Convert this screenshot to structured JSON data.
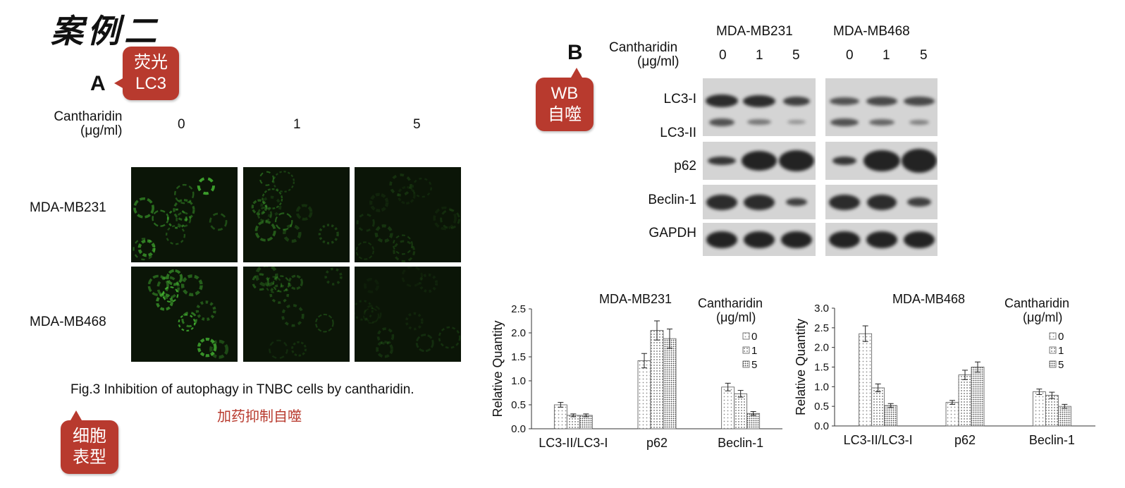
{
  "slide": {
    "title": "案例二",
    "caption": "Fig.3 Inhibition of autophagy in TNBC cells by cantharidin.",
    "caption_note": "加药抑制自噬"
  },
  "callouts": {
    "fluor": [
      "荧光",
      "LC3"
    ],
    "wb": [
      "WB",
      "自噬"
    ],
    "cell": [
      "细胞",
      "表型"
    ]
  },
  "panel_a": {
    "letter": "A",
    "treatment_label": [
      "Cantharidin",
      "(μg/ml)"
    ],
    "doses": [
      "0",
      "1",
      "5"
    ],
    "rows": [
      "MDA-MB231",
      "MDA-MB468"
    ],
    "fluorescence_intensity": [
      [
        1.0,
        0.55,
        0.25
      ],
      [
        0.95,
        0.45,
        0.2
      ]
    ]
  },
  "panel_b": {
    "letter": "B",
    "treatment_label": [
      "Cantharidin",
      "(μg/ml)"
    ],
    "cell_lines": [
      "MDA-MB231",
      "MDA-MB468"
    ],
    "doses": [
      "0",
      "1",
      "5"
    ],
    "proteins": [
      "LC3-I",
      "LC3-II",
      "p62",
      "Beclin-1",
      "GAPDH"
    ]
  },
  "colors": {
    "accent": "#b83a2e",
    "fluorescence": "#4fd23a"
  },
  "chart_data": [
    {
      "type": "bar",
      "title": "MDA-MB231",
      "ylabel": "Relative Quantity",
      "xlabel": "",
      "ylim": [
        0,
        2.5
      ],
      "yticks": [
        "0.0",
        "0.5",
        "1.0",
        "1.5",
        "2.0",
        "2.5"
      ],
      "categories": [
        "LC3-II/LC3-I",
        "p62",
        "Beclin-1"
      ],
      "legend_title": [
        "Cantharidin",
        "(μg/ml)"
      ],
      "legend_position": "top-right",
      "series": [
        {
          "name": "0",
          "values": [
            0.5,
            1.42,
            0.87
          ],
          "errors": [
            0.05,
            0.15,
            0.08
          ]
        },
        {
          "name": "1",
          "values": [
            0.28,
            2.05,
            0.73
          ],
          "errors": [
            0.03,
            0.2,
            0.07
          ]
        },
        {
          "name": "5",
          "values": [
            0.28,
            1.88,
            0.32
          ],
          "errors": [
            0.03,
            0.2,
            0.04
          ]
        }
      ]
    },
    {
      "type": "bar",
      "title": "MDA-MB468",
      "ylabel": "Relative Quantity",
      "xlabel": "",
      "ylim": [
        0,
        3.0
      ],
      "yticks": [
        "0.0",
        "0.5",
        "1.0",
        "1.5",
        "2.0",
        "2.5",
        "3.0"
      ],
      "categories": [
        "LC3-II/LC3-I",
        "p62",
        "Beclin-1"
      ],
      "legend_title": [
        "Cantharidin",
        "(μg/ml)"
      ],
      "legend_position": "top-right",
      "series": [
        {
          "name": "0",
          "values": [
            2.35,
            0.6,
            0.87
          ],
          "errors": [
            0.2,
            0.05,
            0.07
          ]
        },
        {
          "name": "1",
          "values": [
            0.97,
            1.3,
            0.78
          ],
          "errors": [
            0.1,
            0.12,
            0.08
          ]
        },
        {
          "name": "5",
          "values": [
            0.52,
            1.5,
            0.5
          ],
          "errors": [
            0.05,
            0.13,
            0.05
          ]
        }
      ]
    }
  ]
}
